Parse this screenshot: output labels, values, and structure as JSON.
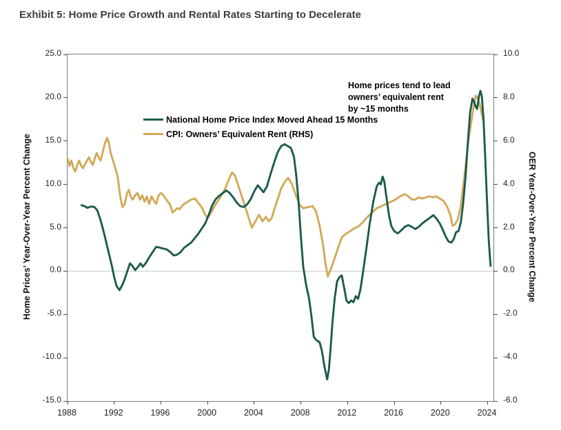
{
  "title": "Exhibit 5: Home Price Growth and Rental Rates Starting to Decelerate",
  "chart_data": {
    "type": "line",
    "title": "Exhibit 5: Home Price Growth and Rental Rates Starting to Decelerate",
    "annotation_lines": [
      "Home prices tend to lead",
      "owners’ equivalent rent",
      "by ~15 months"
    ],
    "left_axis": {
      "label": "Home Prices’ Year-Over-Year Percent Change",
      "range": [
        -15,
        25
      ],
      "tick_values": [
        25,
        20,
        15,
        10,
        5,
        0,
        -5,
        -10,
        -15
      ],
      "tick_labels": [
        "25.0",
        "20.0",
        "15.0",
        "10.0",
        "5.0",
        "0.0",
        "-5.0",
        "-10.0",
        "-15.0"
      ]
    },
    "right_axis": {
      "label": "OER Year-Over-Year Percent Change",
      "range": [
        -6,
        10
      ],
      "tick_values": [
        10,
        8,
        6,
        4,
        2,
        0,
        -2,
        -4,
        -6
      ],
      "tick_labels": [
        "10.0",
        "8.0",
        "6.0",
        "4.0",
        "2.0",
        "0.0",
        "-2.0",
        "-4.0",
        "-6.0"
      ]
    },
    "x_axis": {
      "range": [
        1988,
        2024.5
      ],
      "tick_values": [
        1988,
        1992,
        1996,
        2000,
        2004,
        2008,
        2012,
        2016,
        2020,
        2024
      ],
      "tick_labels": [
        "1988",
        "1992",
        "1996",
        "2000",
        "2004",
        "2008",
        "2012",
        "2016",
        "2020",
        "2024"
      ]
    },
    "grid": "zero-line-only",
    "legend_position": "top-left-inside",
    "series": [
      {
        "label": "CPI: Owners’ Equivalent Rent (RHS)",
        "color": "#d2a958",
        "axis": "right",
        "points": [
          [
            1988.0,
            5.2
          ],
          [
            1988.17,
            4.85
          ],
          [
            1988.33,
            5.1
          ],
          [
            1988.5,
            4.75
          ],
          [
            1988.67,
            4.6
          ],
          [
            1988.83,
            4.9
          ],
          [
            1989.0,
            5.1
          ],
          [
            1989.17,
            4.85
          ],
          [
            1989.33,
            4.75
          ],
          [
            1989.5,
            4.95
          ],
          [
            1989.67,
            5.1
          ],
          [
            1989.83,
            5.25
          ],
          [
            1990.0,
            5.05
          ],
          [
            1990.17,
            4.9
          ],
          [
            1990.33,
            5.2
          ],
          [
            1990.5,
            5.45
          ],
          [
            1990.67,
            5.25
          ],
          [
            1990.83,
            5.1
          ],
          [
            1991.0,
            5.45
          ],
          [
            1991.2,
            5.9
          ],
          [
            1991.4,
            6.15
          ],
          [
            1991.55,
            5.9
          ],
          [
            1991.7,
            5.45
          ],
          [
            1991.9,
            5.1
          ],
          [
            1992.1,
            4.75
          ],
          [
            1992.3,
            4.35
          ],
          [
            1992.5,
            3.5
          ],
          [
            1992.7,
            2.95
          ],
          [
            1992.9,
            3.1
          ],
          [
            1993.1,
            3.6
          ],
          [
            1993.25,
            3.75
          ],
          [
            1993.4,
            3.45
          ],
          [
            1993.6,
            3.3
          ],
          [
            1993.8,
            3.5
          ],
          [
            1994.0,
            3.6
          ],
          [
            1994.2,
            3.3
          ],
          [
            1994.4,
            3.5
          ],
          [
            1994.6,
            3.2
          ],
          [
            1994.8,
            3.45
          ],
          [
            1995.0,
            3.1
          ],
          [
            1995.2,
            3.45
          ],
          [
            1995.4,
            3.25
          ],
          [
            1995.6,
            3.1
          ],
          [
            1995.8,
            3.5
          ],
          [
            1996.0,
            3.6
          ],
          [
            1996.2,
            3.5
          ],
          [
            1996.4,
            3.35
          ],
          [
            1996.6,
            3.2
          ],
          [
            1996.8,
            3.05
          ],
          [
            1997.0,
            2.7
          ],
          [
            1997.2,
            2.8
          ],
          [
            1997.4,
            2.9
          ],
          [
            1997.6,
            2.85
          ],
          [
            1997.8,
            3.0
          ],
          [
            1998.0,
            3.1
          ],
          [
            1998.3,
            3.2
          ],
          [
            1998.6,
            3.3
          ],
          [
            1998.9,
            3.35
          ],
          [
            1999.2,
            3.15
          ],
          [
            1999.5,
            2.95
          ],
          [
            1999.8,
            2.6
          ],
          [
            2000.0,
            2.45
          ],
          [
            2000.3,
            2.7
          ],
          [
            2000.6,
            3.0
          ],
          [
            2000.9,
            3.25
          ],
          [
            2001.2,
            3.5
          ],
          [
            2001.5,
            3.8
          ],
          [
            2001.8,
            4.2
          ],
          [
            2002.1,
            4.55
          ],
          [
            2002.35,
            4.4
          ],
          [
            2002.6,
            4.0
          ],
          [
            2002.9,
            3.5
          ],
          [
            2003.2,
            3.0
          ],
          [
            2003.5,
            2.5
          ],
          [
            2003.8,
            2.0
          ],
          [
            2004.1,
            2.3
          ],
          [
            2004.4,
            2.6
          ],
          [
            2004.7,
            2.3
          ],
          [
            2005.0,
            2.5
          ],
          [
            2005.25,
            2.3
          ],
          [
            2005.5,
            2.45
          ],
          [
            2005.75,
            2.9
          ],
          [
            2006.0,
            3.3
          ],
          [
            2006.3,
            3.8
          ],
          [
            2006.6,
            4.1
          ],
          [
            2006.9,
            4.3
          ],
          [
            2007.2,
            4.05
          ],
          [
            2007.5,
            3.6
          ],
          [
            2007.9,
            3.05
          ],
          [
            2008.2,
            2.9
          ],
          [
            2008.6,
            2.95
          ],
          [
            2009.0,
            3.0
          ],
          [
            2009.3,
            2.75
          ],
          [
            2009.6,
            2.1
          ],
          [
            2009.9,
            1.2
          ],
          [
            2010.1,
            0.35
          ],
          [
            2010.3,
            -0.25
          ],
          [
            2010.6,
            0.15
          ],
          [
            2010.9,
            0.6
          ],
          [
            2011.2,
            1.1
          ],
          [
            2011.5,
            1.55
          ],
          [
            2011.8,
            1.7
          ],
          [
            2012.1,
            1.8
          ],
          [
            2012.5,
            1.95
          ],
          [
            2012.9,
            2.05
          ],
          [
            2013.3,
            2.25
          ],
          [
            2013.7,
            2.5
          ],
          [
            2014.1,
            2.7
          ],
          [
            2014.5,
            2.9
          ],
          [
            2014.9,
            3.0
          ],
          [
            2015.3,
            3.1
          ],
          [
            2015.7,
            3.2
          ],
          [
            2016.1,
            3.3
          ],
          [
            2016.5,
            3.45
          ],
          [
            2016.9,
            3.55
          ],
          [
            2017.2,
            3.45
          ],
          [
            2017.5,
            3.3
          ],
          [
            2017.8,
            3.3
          ],
          [
            2018.1,
            3.4
          ],
          [
            2018.4,
            3.35
          ],
          [
            2018.7,
            3.4
          ],
          [
            2019.0,
            3.45
          ],
          [
            2019.3,
            3.4
          ],
          [
            2019.6,
            3.45
          ],
          [
            2019.9,
            3.35
          ],
          [
            2020.2,
            3.25
          ],
          [
            2020.5,
            3.0
          ],
          [
            2020.8,
            2.6
          ],
          [
            2021.0,
            2.1
          ],
          [
            2021.2,
            2.15
          ],
          [
            2021.45,
            2.4
          ],
          [
            2021.7,
            3.0
          ],
          [
            2021.9,
            3.9
          ],
          [
            2022.1,
            4.8
          ],
          [
            2022.35,
            6.0
          ],
          [
            2022.6,
            6.9
          ],
          [
            2022.8,
            7.6
          ],
          [
            2023.0,
            8.1
          ],
          [
            2023.2,
            7.95
          ],
          [
            2023.4,
            7.5
          ],
          [
            2023.6,
            7.0
          ]
        ]
      },
      {
        "label": "National Home Price Index Moved Ahead 15 Months",
        "color": "#1b5b4c",
        "axis": "left",
        "points": [
          [
            1989.2,
            7.6
          ],
          [
            1989.45,
            7.5
          ],
          [
            1989.7,
            7.3
          ],
          [
            1990.0,
            7.45
          ],
          [
            1990.3,
            7.4
          ],
          [
            1990.55,
            7.0
          ],
          [
            1990.8,
            6.0
          ],
          [
            1991.05,
            4.8
          ],
          [
            1991.3,
            3.4
          ],
          [
            1991.55,
            2.0
          ],
          [
            1991.8,
            0.6
          ],
          [
            1992.0,
            -0.7
          ],
          [
            1992.2,
            -1.7
          ],
          [
            1992.45,
            -2.2
          ],
          [
            1992.7,
            -1.6
          ],
          [
            1992.9,
            -0.9
          ],
          [
            1993.1,
            -0.1
          ],
          [
            1993.35,
            0.9
          ],
          [
            1993.55,
            0.6
          ],
          [
            1993.8,
            0.1
          ],
          [
            1994.05,
            0.5
          ],
          [
            1994.25,
            0.9
          ],
          [
            1994.45,
            0.5
          ],
          [
            1994.7,
            0.9
          ],
          [
            1995.0,
            1.6
          ],
          [
            1995.3,
            2.2
          ],
          [
            1995.6,
            2.8
          ],
          [
            1995.9,
            2.7
          ],
          [
            1996.2,
            2.6
          ],
          [
            1996.5,
            2.5
          ],
          [
            1996.8,
            2.2
          ],
          [
            1997.1,
            1.8
          ],
          [
            1997.4,
            1.9
          ],
          [
            1997.7,
            2.2
          ],
          [
            1998.0,
            2.7
          ],
          [
            1998.3,
            3.0
          ],
          [
            1998.6,
            3.3
          ],
          [
            1998.9,
            3.8
          ],
          [
            1999.2,
            4.3
          ],
          [
            1999.5,
            4.9
          ],
          [
            1999.8,
            5.5
          ],
          [
            2000.1,
            6.5
          ],
          [
            2000.4,
            7.6
          ],
          [
            2000.7,
            8.3
          ],
          [
            2001.0,
            8.7
          ],
          [
            2001.3,
            9.0
          ],
          [
            2001.6,
            9.3
          ],
          [
            2001.9,
            9.0
          ],
          [
            2002.2,
            8.5
          ],
          [
            2002.5,
            7.9
          ],
          [
            2002.8,
            7.5
          ],
          [
            2003.1,
            7.4
          ],
          [
            2003.4,
            7.7
          ],
          [
            2003.7,
            8.3
          ],
          [
            2004.0,
            9.2
          ],
          [
            2004.3,
            9.9
          ],
          [
            2004.55,
            9.5
          ],
          [
            2004.8,
            9.1
          ],
          [
            2005.1,
            9.8
          ],
          [
            2005.4,
            11.2
          ],
          [
            2005.7,
            12.5
          ],
          [
            2006.0,
            13.7
          ],
          [
            2006.3,
            14.4
          ],
          [
            2006.6,
            14.65
          ],
          [
            2006.9,
            14.4
          ],
          [
            2007.15,
            14.2
          ],
          [
            2007.4,
            13.2
          ],
          [
            2007.6,
            11.0
          ],
          [
            2007.8,
            8.0
          ],
          [
            2008.0,
            4.0
          ],
          [
            2008.2,
            0.5
          ],
          [
            2008.45,
            -1.6
          ],
          [
            2008.7,
            -3.2
          ],
          [
            2008.9,
            -5.2
          ],
          [
            2009.1,
            -7.6
          ],
          [
            2009.35,
            -8.0
          ],
          [
            2009.6,
            -8.2
          ],
          [
            2009.8,
            -9.2
          ],
          [
            2010.0,
            -10.9
          ],
          [
            2010.25,
            -12.5
          ],
          [
            2010.4,
            -11.3
          ],
          [
            2010.55,
            -8.8
          ],
          [
            2010.7,
            -6.0
          ],
          [
            2010.9,
            -3.1
          ],
          [
            2011.1,
            -1.2
          ],
          [
            2011.3,
            -0.7
          ],
          [
            2011.5,
            -0.5
          ],
          [
            2011.7,
            -1.9
          ],
          [
            2011.9,
            -3.4
          ],
          [
            2012.1,
            -3.7
          ],
          [
            2012.3,
            -3.4
          ],
          [
            2012.5,
            -3.6
          ],
          [
            2012.7,
            -2.9
          ],
          [
            2012.9,
            -3.2
          ],
          [
            2013.1,
            -2.1
          ],
          [
            2013.3,
            -0.3
          ],
          [
            2013.6,
            2.5
          ],
          [
            2013.9,
            5.5
          ],
          [
            2014.2,
            8.0
          ],
          [
            2014.5,
            9.8
          ],
          [
            2014.7,
            10.2
          ],
          [
            2014.85,
            10.0
          ],
          [
            2015.0,
            10.9
          ],
          [
            2015.15,
            10.3
          ],
          [
            2015.35,
            8.3
          ],
          [
            2015.55,
            6.4
          ],
          [
            2015.75,
            5.2
          ],
          [
            2016.0,
            4.6
          ],
          [
            2016.3,
            4.35
          ],
          [
            2016.6,
            4.7
          ],
          [
            2016.9,
            5.1
          ],
          [
            2017.2,
            5.3
          ],
          [
            2017.5,
            5.1
          ],
          [
            2017.8,
            4.85
          ],
          [
            2018.1,
            5.1
          ],
          [
            2018.4,
            5.5
          ],
          [
            2018.7,
            5.8
          ],
          [
            2019.0,
            6.1
          ],
          [
            2019.35,
            6.45
          ],
          [
            2019.6,
            6.1
          ],
          [
            2019.9,
            5.5
          ],
          [
            2020.15,
            4.8
          ],
          [
            2020.4,
            4.0
          ],
          [
            2020.65,
            3.4
          ],
          [
            2020.9,
            3.3
          ],
          [
            2021.1,
            3.7
          ],
          [
            2021.3,
            4.5
          ],
          [
            2021.5,
            4.6
          ],
          [
            2021.7,
            5.6
          ],
          [
            2021.9,
            7.8
          ],
          [
            2022.1,
            10.8
          ],
          [
            2022.3,
            14.8
          ],
          [
            2022.5,
            18.3
          ],
          [
            2022.7,
            19.9
          ],
          [
            2022.85,
            19.5
          ],
          [
            2023.0,
            18.9
          ],
          [
            2023.1,
            18.7
          ],
          [
            2023.25,
            20.1
          ],
          [
            2023.38,
            20.8
          ],
          [
            2023.5,
            20.2
          ],
          [
            2023.65,
            17.5
          ],
          [
            2023.8,
            13.0
          ],
          [
            2023.95,
            8.0
          ],
          [
            2024.1,
            3.5
          ],
          [
            2024.25,
            0.6
          ]
        ]
      }
    ]
  }
}
